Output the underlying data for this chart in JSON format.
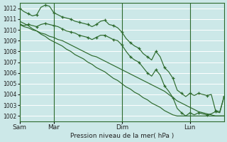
{
  "background_color": "#cce8e8",
  "grid_color": "#ffffff",
  "line_color": "#2d6a2d",
  "xlabel": "Pression niveau de la mer( hPa )",
  "ylim": [
    1001.5,
    1012.5
  ],
  "ytick_values": [
    1002,
    1003,
    1004,
    1005,
    1006,
    1007,
    1008,
    1009,
    1010,
    1011,
    1012
  ],
  "n_points": 49,
  "vline_positions": [
    0,
    8,
    24,
    40
  ],
  "xtick_positions": [
    0,
    8,
    24,
    40
  ],
  "xtick_labels": [
    "Sam",
    "Mar",
    "Dim",
    "Lun"
  ],
  "series_with_markers": [
    [
      1012.0,
      1011.7,
      1011.5,
      1011.3,
      1011.4,
      1012.1,
      1012.3,
      1012.2,
      1011.6,
      1011.4,
      1011.2,
      1011.1,
      1011.0,
      1010.8,
      1010.7,
      1010.6,
      1010.5,
      1010.3,
      1010.5,
      1010.8,
      1010.9,
      1010.5,
      1010.4,
      1010.2,
      1009.8,
      1009.2,
      1008.8,
      1008.5,
      1008.3,
      1007.8,
      1007.5,
      1007.2,
      1008.0,
      1007.5,
      1006.5,
      1006.1,
      1005.5,
      1004.4,
      1004.1,
      1003.8,
      1004.1,
      1003.9,
      1004.1,
      1004.0,
      1003.9,
      1004.0,
      1002.5,
      1002.4,
      1003.8
    ],
    [
      1010.5,
      1010.4,
      1010.5,
      1010.4,
      1010.3,
      1010.5,
      1010.6,
      1010.5,
      1010.4,
      1010.3,
      1010.1,
      1009.9,
      1009.8,
      1009.7,
      1009.5,
      1009.4,
      1009.3,
      1009.1,
      1009.3,
      1009.5,
      1009.5,
      1009.3,
      1009.1,
      1009.0,
      1008.6,
      1008.0,
      1007.5,
      1007.2,
      1007.0,
      1006.5,
      1006.0,
      1005.7,
      1006.3,
      1005.8,
      1004.8,
      1004.3,
      1003.7,
      1002.7,
      1002.3,
      1002.0,
      1002.3,
      1002.1,
      1002.3,
      1002.2,
      1002.1,
      1002.2,
      1002.4,
      1002.3,
      1003.8
    ]
  ],
  "series_smooth": [
    [
      1010.5,
      1010.3,
      1010.2,
      1010.0,
      1009.9,
      1009.7,
      1009.6,
      1009.4,
      1009.3,
      1009.1,
      1009.0,
      1008.8,
      1008.6,
      1008.4,
      1008.2,
      1008.0,
      1007.8,
      1007.6,
      1007.5,
      1007.3,
      1007.1,
      1006.9,
      1006.7,
      1006.5,
      1006.3,
      1006.1,
      1005.9,
      1005.7,
      1005.5,
      1005.3,
      1005.1,
      1004.9,
      1004.7,
      1004.5,
      1004.3,
      1004.0,
      1003.7,
      1003.4,
      1003.2,
      1003.0,
      1002.8,
      1002.6,
      1002.4,
      1002.3,
      1002.2,
      1002.1,
      1002.0,
      1002.0,
      1002.0
    ],
    [
      1010.8,
      1010.6,
      1010.4,
      1010.1,
      1009.9,
      1009.6,
      1009.4,
      1009.1,
      1008.9,
      1008.7,
      1008.5,
      1008.2,
      1008.0,
      1007.7,
      1007.5,
      1007.3,
      1007.0,
      1006.8,
      1006.5,
      1006.3,
      1006.1,
      1005.8,
      1005.5,
      1005.3,
      1005.0,
      1004.7,
      1004.5,
      1004.2,
      1004.0,
      1003.7,
      1003.5,
      1003.2,
      1003.0,
      1002.8,
      1002.5,
      1002.3,
      1002.1,
      1002.0,
      1002.0,
      1002.0,
      1002.0,
      1002.0,
      1002.0,
      1002.0,
      1002.0,
      1002.0,
      1002.0,
      1002.0,
      1002.0
    ]
  ]
}
